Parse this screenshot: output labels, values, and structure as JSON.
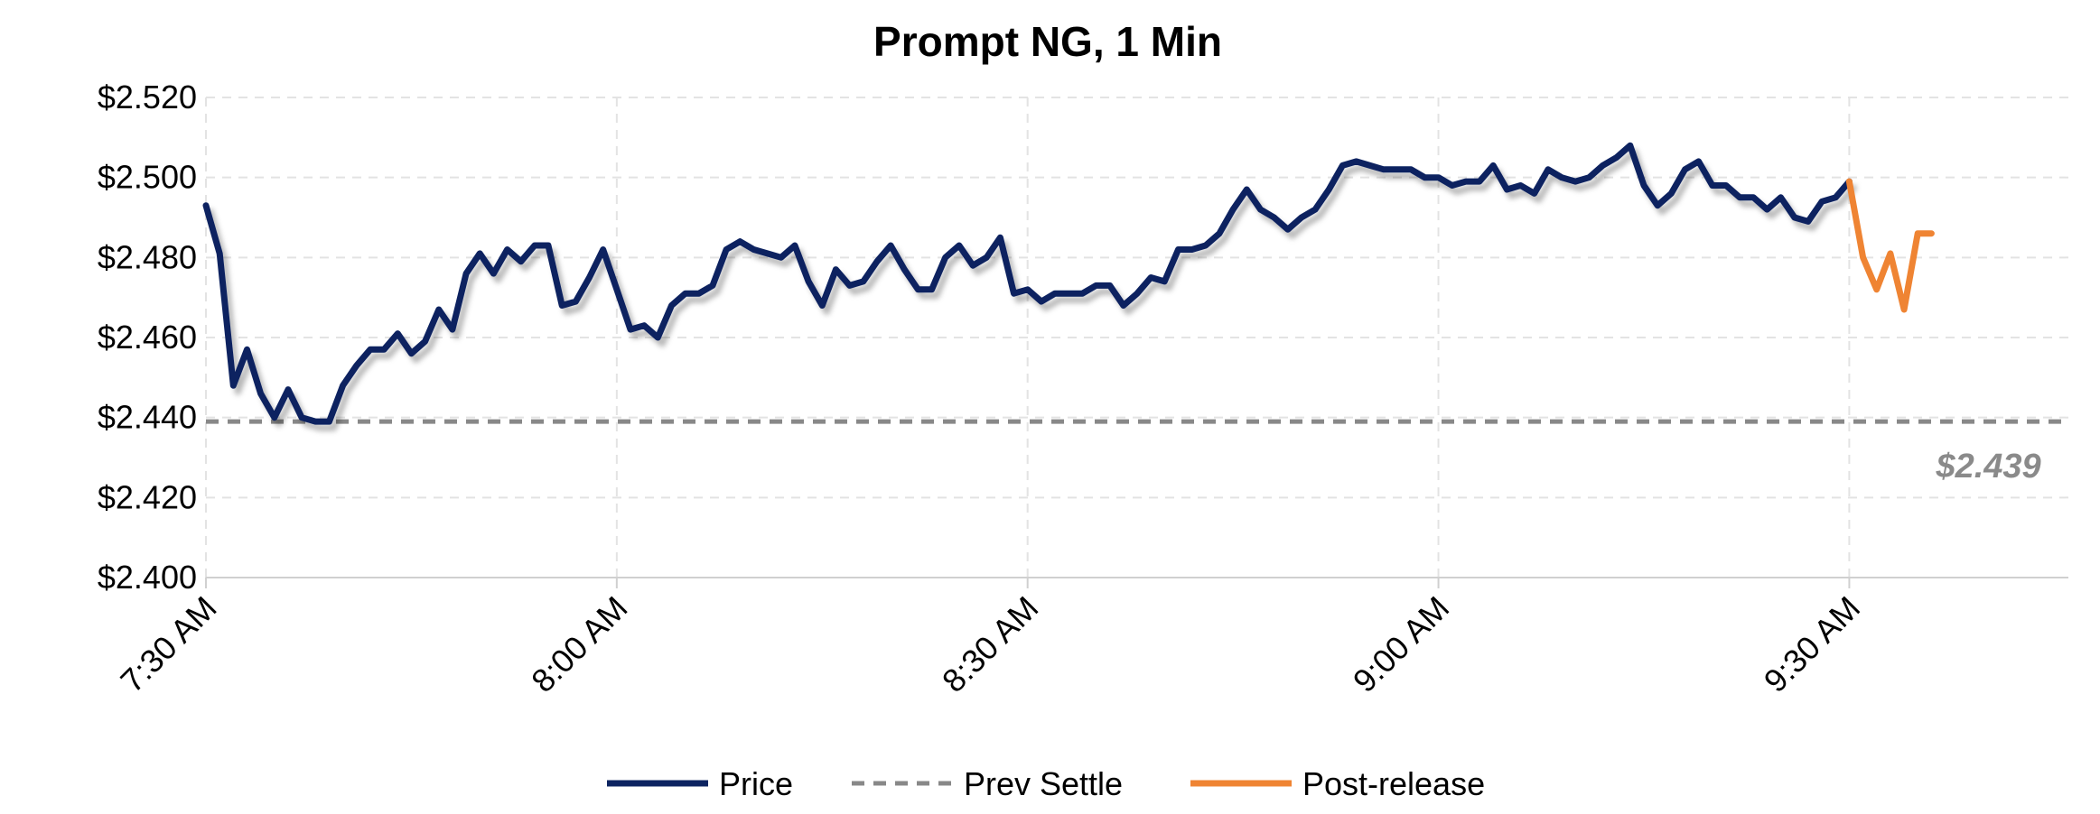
{
  "chart_data": {
    "type": "line",
    "title": "Prompt NG, 1 Min",
    "xlabel": "",
    "ylabel": "",
    "x_unit": "minutes from 7:30 AM",
    "xlim": [
      0,
      136
    ],
    "ylim": [
      2.4,
      2.52
    ],
    "y_ticks": [
      "$2.400",
      "$2.420",
      "$2.440",
      "$2.460",
      "$2.480",
      "$2.500",
      "$2.520"
    ],
    "y_tick_values": [
      2.4,
      2.42,
      2.44,
      2.46,
      2.48,
      2.5,
      2.52
    ],
    "x_ticks": [
      "7:30 AM",
      "8:00 AM",
      "8:30 AM",
      "9:00 AM",
      "9:30 AM"
    ],
    "x_tick_values": [
      0,
      30,
      60,
      90,
      120
    ],
    "grid": true,
    "legend_position": "bottom",
    "series": [
      {
        "name": "Price",
        "color": "#0d2461",
        "shadow": true,
        "x": [
          0,
          1,
          2,
          3,
          4,
          5,
          6,
          7,
          8,
          9,
          10,
          11,
          12,
          13,
          14,
          15,
          16,
          17,
          18,
          19,
          20,
          21,
          22,
          23,
          24,
          25,
          26,
          27,
          28,
          29,
          30,
          31,
          32,
          33,
          34,
          35,
          36,
          37,
          38,
          39,
          40,
          41,
          42,
          43,
          44,
          45,
          46,
          47,
          48,
          49,
          50,
          51,
          52,
          53,
          54,
          55,
          56,
          57,
          58,
          59,
          60,
          61,
          62,
          63,
          64,
          65,
          66,
          67,
          68,
          69,
          70,
          71,
          72,
          73,
          74,
          75,
          76,
          77,
          78,
          79,
          80,
          81,
          82,
          83,
          84,
          85,
          86,
          87,
          88,
          89,
          90,
          91,
          92,
          93,
          94,
          95,
          96,
          97,
          98,
          99,
          100,
          101,
          102,
          103,
          104,
          105,
          106,
          107,
          108,
          109,
          110,
          111,
          112,
          113,
          114,
          115,
          116,
          117,
          118,
          119,
          120
        ],
        "values": [
          2.493,
          2.481,
          2.448,
          2.457,
          2.446,
          2.44,
          2.447,
          2.44,
          2.439,
          2.439,
          2.448,
          2.453,
          2.457,
          2.457,
          2.461,
          2.456,
          2.459,
          2.467,
          2.462,
          2.476,
          2.481,
          2.476,
          2.482,
          2.479,
          2.483,
          2.483,
          2.468,
          2.469,
          2.475,
          2.482,
          2.472,
          2.462,
          2.463,
          2.46,
          2.468,
          2.471,
          2.471,
          2.473,
          2.482,
          2.484,
          2.482,
          2.481,
          2.48,
          2.483,
          2.474,
          2.468,
          2.477,
          2.473,
          2.474,
          2.479,
          2.483,
          2.477,
          2.472,
          2.472,
          2.48,
          2.483,
          2.478,
          2.48,
          2.485,
          2.471,
          2.472,
          2.469,
          2.471,
          2.471,
          2.471,
          2.473,
          2.473,
          2.468,
          2.471,
          2.475,
          2.474,
          2.482,
          2.482,
          2.483,
          2.486,
          2.492,
          2.497,
          2.492,
          2.49,
          2.487,
          2.49,
          2.492,
          2.497,
          2.503,
          2.504,
          2.503,
          2.502,
          2.502,
          2.502,
          2.5,
          2.5,
          2.498,
          2.499,
          2.499,
          2.503,
          2.497,
          2.498,
          2.496,
          2.502,
          2.5,
          2.499,
          2.5,
          2.503,
          2.505,
          2.508,
          2.498,
          2.493,
          2.496,
          2.502,
          2.504,
          2.498,
          2.498,
          2.495,
          2.495,
          2.492,
          2.495,
          2.49,
          2.489,
          2.494,
          2.495,
          2.499
        ]
      },
      {
        "name": "Prev Settle",
        "color": "#888888",
        "dashed": true,
        "x": [
          0,
          136
        ],
        "values": [
          2.439,
          2.439
        ]
      },
      {
        "name": "Post-release",
        "color": "#ef8433",
        "x": [
          120,
          121,
          122,
          123,
          124,
          125,
          126
        ],
        "values": [
          2.499,
          2.48,
          2.472,
          2.481,
          2.467,
          2.486,
          2.486
        ]
      }
    ],
    "annotations": [
      {
        "text": "$2.439",
        "x": 134,
        "y": 2.439,
        "color": "#8a8a8a"
      }
    ]
  }
}
